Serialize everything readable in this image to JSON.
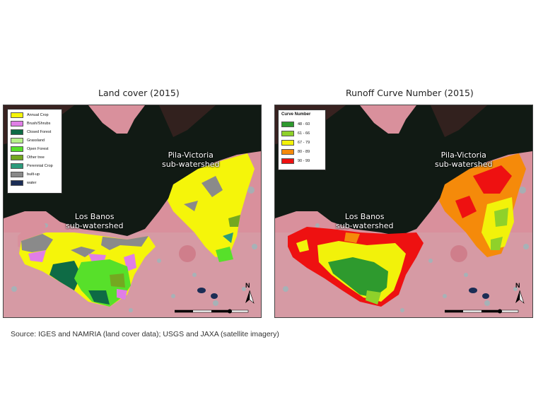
{
  "figure": {
    "left_panel": {
      "title": "Land cover (2015)",
      "legend": {
        "items": [
          {
            "label": "Annual Crop",
            "color": "#f5f50a"
          },
          {
            "label": "Brush/Shrubs",
            "color": "#e07ee6"
          },
          {
            "label": "Closed Forest",
            "color": "#0e6b45"
          },
          {
            "label": "Grassland",
            "color": "#b7f28a"
          },
          {
            "label": "Open Forest",
            "color": "#57e02a"
          },
          {
            "label": "Other tree",
            "color": "#74a820"
          },
          {
            "label": "Perennial Crop",
            "color": "#2c9b7c"
          },
          {
            "label": "built-up",
            "color": "#8a8a8a"
          },
          {
            "label": "water",
            "color": "#1b2d55"
          }
        ]
      },
      "labels": {
        "los_banos": [
          "Los Banos",
          "sub-watershed"
        ],
        "pila_victoria": [
          "Pila-Victoria",
          "sub-watershed"
        ]
      }
    },
    "right_panel": {
      "title": "Runoff Curve Number (2015)",
      "legend": {
        "title": "Curve Number",
        "items": [
          {
            "label": "48 - 60",
            "color": "#2e9a2e"
          },
          {
            "label": "61 - 66",
            "color": "#8fd12a"
          },
          {
            "label": "67 - 79",
            "color": "#f2f20a"
          },
          {
            "label": "80 - 89",
            "color": "#f58a0a"
          },
          {
            "label": "90 - 99",
            "color": "#ee1111"
          }
        ]
      },
      "labels": {
        "los_banos": [
          "Los Banos",
          "sub-watershed"
        ],
        "pila_victoria": [
          "Pila-Victoria",
          "sub-watershed"
        ]
      }
    },
    "north_label": "N",
    "source": "Source: IGES and NAMRIA (land cover data); USGS and JAXA (satellite imagery)",
    "colors": {
      "lake": "#111a14",
      "land": "#d9909c",
      "land_dark": "#c07080",
      "cyan_speckle": "#7fc7c7"
    }
  }
}
